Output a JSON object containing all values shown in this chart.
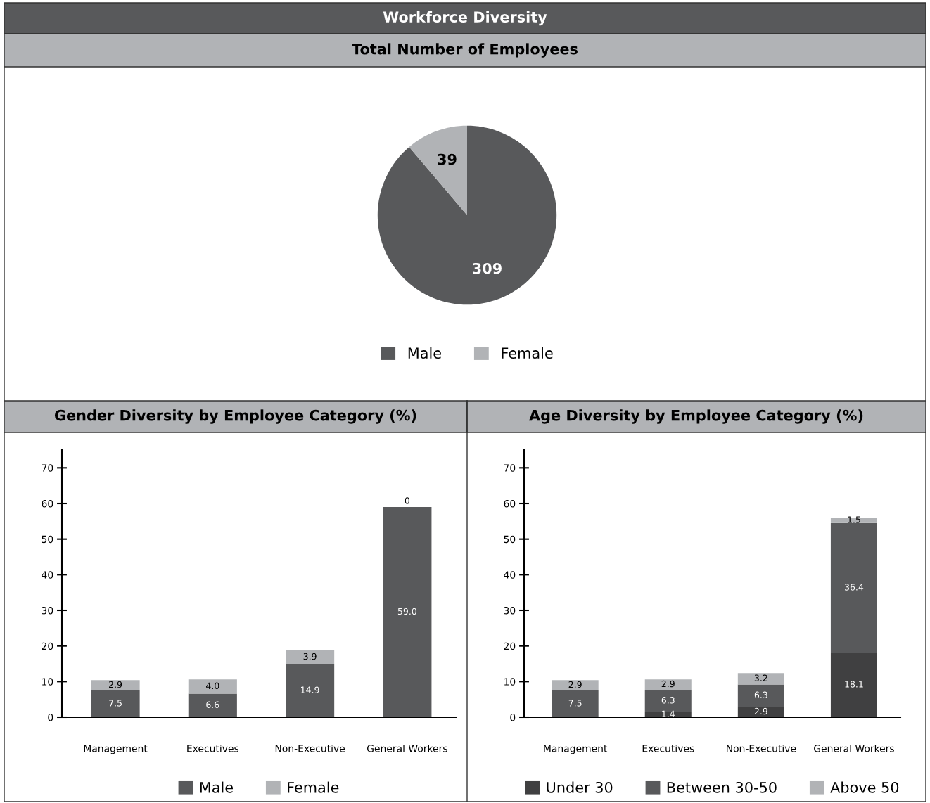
{
  "chart_data": [
    {
      "type": "pie",
      "title": "Workforce Diversity",
      "subtitle": "Total Number of Employees",
      "categories": [
        "Male",
        "Female"
      ],
      "values": [
        309,
        39
      ],
      "colors": [
        "#58595b",
        "#b1b3b6"
      ],
      "data_labels": true,
      "legend": "bottom"
    },
    {
      "type": "bar",
      "stacked": true,
      "title": "Gender Diversity by Employee Category (%)",
      "categories": [
        "Management",
        "Executives",
        "Non-Executive",
        "General Workers"
      ],
      "series": [
        {
          "name": "Male",
          "color": "#58595b",
          "values": [
            7.5,
            6.6,
            14.9,
            59.0
          ],
          "value_labels": [
            "7.5",
            "6.6",
            "14.9",
            "59.0"
          ]
        },
        {
          "name": "Female",
          "color": "#b1b3b6",
          "values": [
            2.9,
            4.0,
            3.9,
            0
          ],
          "value_labels": [
            "2.9",
            "4.0",
            "3.9",
            "0"
          ]
        }
      ],
      "ylim": [
        0,
        75
      ],
      "yticks": [
        0,
        10,
        20,
        30,
        40,
        50,
        60,
        70
      ],
      "grid": false,
      "legend": "bottom"
    },
    {
      "type": "bar",
      "stacked": true,
      "title": "Age Diversity by Employee Category (%)",
      "categories": [
        "Management",
        "Executives",
        "Non-Executive",
        "General Workers"
      ],
      "series": [
        {
          "name": "Under 30",
          "color": "#404041",
          "values": [
            0,
            1.4,
            2.9,
            18.1
          ],
          "value_labels": [
            null,
            "1.4",
            "2.9",
            "18.1"
          ]
        },
        {
          "name": "Between 30-50",
          "color": "#58595b",
          "values": [
            7.5,
            6.3,
            6.3,
            36.4
          ],
          "value_labels": [
            "7.5",
            "6.3",
            "6.3",
            "36.4"
          ]
        },
        {
          "name": "Above 50",
          "color": "#b1b3b6",
          "values": [
            2.9,
            2.9,
            3.2,
            1.5
          ],
          "value_labels": [
            "2.9",
            "2.9",
            "3.2",
            "1.5"
          ]
        }
      ],
      "ylim": [
        0,
        75
      ],
      "yticks": [
        0,
        10,
        20,
        30,
        40,
        50,
        60,
        70
      ],
      "grid": false,
      "legend": "bottom"
    }
  ]
}
